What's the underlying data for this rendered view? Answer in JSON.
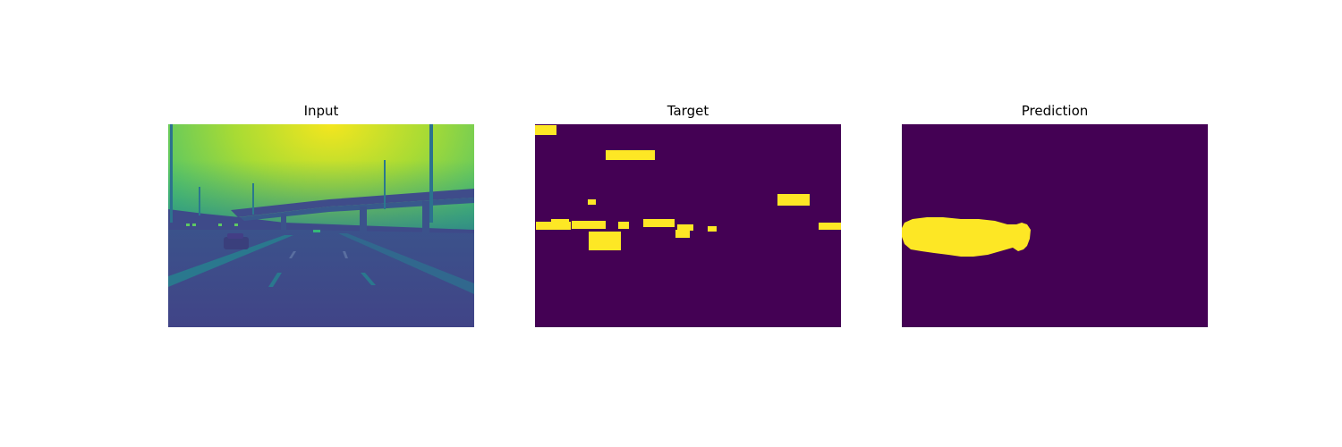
{
  "panels": [
    {
      "title": "Input"
    },
    {
      "title": "Target"
    },
    {
      "title": "Prediction"
    }
  ],
  "colors": {
    "background_class": "#440154",
    "foreground_class": "#fde725",
    "colormap": "viridis"
  }
}
